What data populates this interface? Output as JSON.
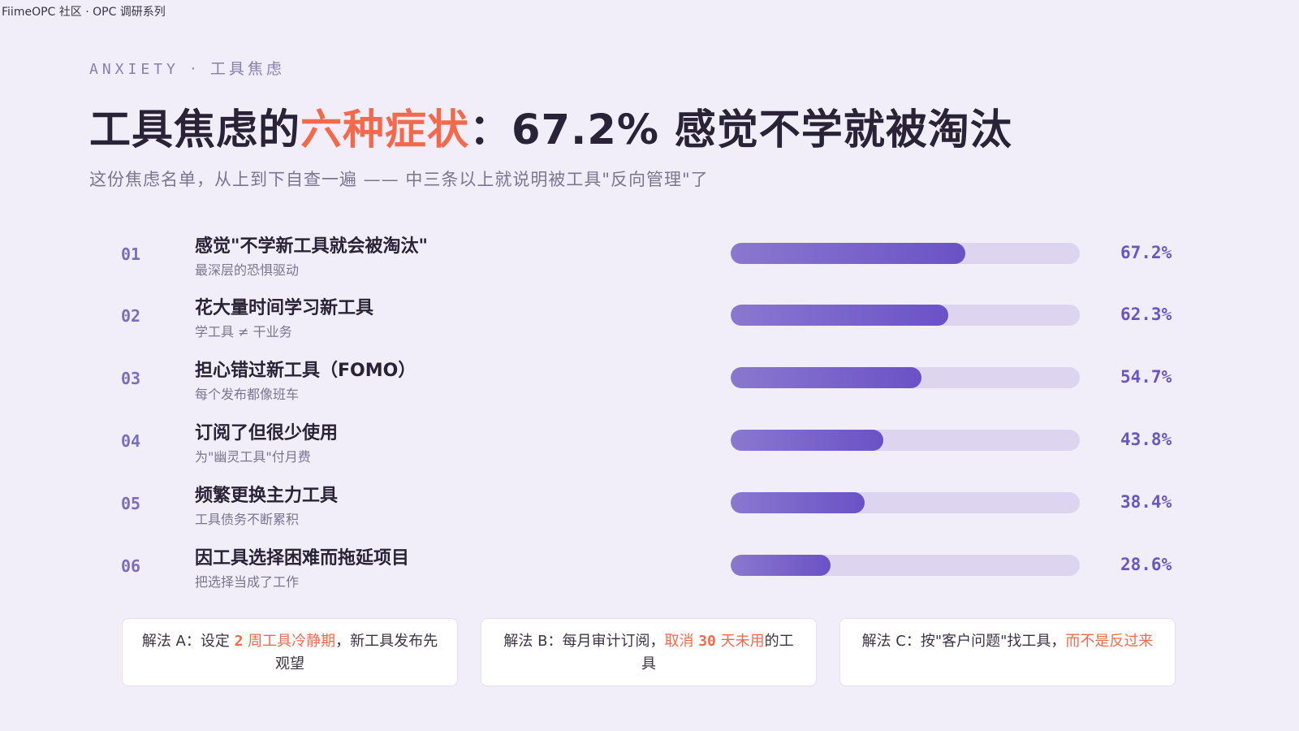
{
  "header": {
    "brand": "FiimeOPC 社区 · OPC 调研系列"
  },
  "eyebrow": {
    "en": "ANXIETY",
    "dot": "·",
    "zh": "工具焦虑"
  },
  "title": {
    "part1": "工具焦虑的",
    "highlight": "六种症状",
    "part2": "：67.2% 感觉不学就被淘汰"
  },
  "subtitle": "这份焦虑名单，从上到下自查一遍 —— 中三条以上就说明被工具\"反向管理\"了",
  "symptoms": [
    {
      "num": "01",
      "label": "感觉\"不学新工具就会被淘汰\"",
      "sub": "最深层的恐惧驱动",
      "value": 67.2,
      "pct": "67.2%"
    },
    {
      "num": "02",
      "label": "花大量时间学习新工具",
      "sub": "学工具 ≠ 干业务",
      "value": 62.3,
      "pct": "62.3%"
    },
    {
      "num": "03",
      "label": "担心错过新工具（FOMO）",
      "sub": "每个发布都像班车",
      "value": 54.7,
      "pct": "54.7%"
    },
    {
      "num": "04",
      "label": "订阅了但很少使用",
      "sub": "为\"幽灵工具\"付月费",
      "value": 43.8,
      "pct": "43.8%"
    },
    {
      "num": "05",
      "label": "频繁更换主力工具",
      "sub": "工具债务不断累积",
      "value": 38.4,
      "pct": "38.4%"
    },
    {
      "num": "06",
      "label": "因工具选择困难而拖延项目",
      "sub": "把选择当成了工作",
      "value": 28.6,
      "pct": "28.6%"
    }
  ],
  "solutions": [
    {
      "prefix": "解法 A：设定 ",
      "num": "2",
      "accent": " 周工具冷静期",
      "suffix": "，新工具发布先观望"
    },
    {
      "prefix": "解法 B：每月审计订阅，",
      "accent": "取消 ",
      "num": "30",
      "accent2": " 天未用",
      "suffix": "的工具"
    },
    {
      "prefix": "解法 C：按\"客户问题\"找工具，",
      "accent": "而不是反过来"
    }
  ],
  "colors": {
    "accent": "#f26a4b",
    "bar": "#6a52c6",
    "track": "#ddd5ef",
    "background": "#f1edf9"
  }
}
